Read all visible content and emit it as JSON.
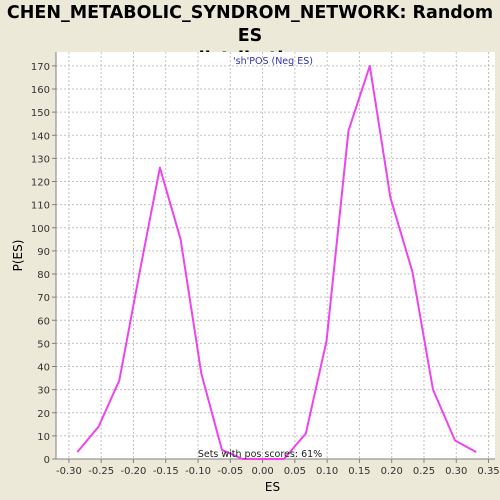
{
  "chart_data": {
    "type": "line",
    "title_line1": "CHEN_METABOLIC_SYNDROM_NETWORK: Random ES",
    "title_line2": "distribution",
    "xlabel": "ES",
    "ylabel": "P(ES)",
    "xlim": [
      -0.32,
      0.36
    ],
    "ylim": [
      0,
      176
    ],
    "x_ticks": [
      -0.3,
      -0.25,
      -0.2,
      -0.15,
      -0.1,
      -0.05,
      0.0,
      0.05,
      0.1,
      0.15,
      0.2,
      0.25,
      0.3,
      0.35
    ],
    "x_tick_labels": [
      "-0.30",
      "-0.25",
      "-0.20",
      "-0.15",
      "-0.10",
      "-0.05",
      "0.00",
      "0.05",
      "0.10",
      "0.15",
      "0.20",
      "0.25",
      "0.30",
      "0.35"
    ],
    "y_ticks": [
      0,
      10,
      20,
      30,
      40,
      50,
      60,
      70,
      80,
      90,
      100,
      110,
      120,
      130,
      140,
      150,
      160,
      170
    ],
    "grid": true,
    "legend_text": "'sh'POS (Neg ES)",
    "annotation": "Sets with pos scores: 61%",
    "line_color": "#ee44ee",
    "series": [
      {
        "x": [
          -0.287,
          -0.254,
          -0.222,
          -0.191,
          -0.159,
          -0.127,
          -0.095,
          -0.063,
          -0.031,
          0.001,
          0.033,
          0.067,
          0.099,
          0.133,
          0.166,
          0.198,
          0.232,
          0.264,
          0.298,
          0.331
        ],
        "y": [
          3,
          14,
          34,
          80,
          126,
          95,
          37,
          4,
          0,
          0,
          0,
          11,
          51,
          142,
          170,
          113,
          81,
          30,
          8,
          3
        ]
      }
    ]
  }
}
